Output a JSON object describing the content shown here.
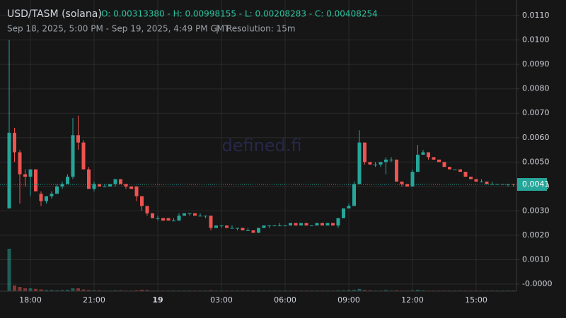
{
  "chart_data": {
    "type": "candlestick",
    "title": "USD/TASM (solana)",
    "summary": "O: 0.00313380 - H: 0.00998155 - L: 0.00208283 - C: 0.00408254",
    "subtitle": "Sep 18, 2025, 5:00 PM - Sep 19, 2025, 4:49 PM GMT",
    "separator": "|",
    "resolution": "Resolution: 15m",
    "watermark": "defined.fi",
    "up_color": "#26a69a",
    "down_color": "#ef5350",
    "grid": true,
    "ylim": [
      -0.00029,
      0.01164
    ],
    "yticks": [
      {
        "value": 0,
        "label": "-0.0000"
      },
      {
        "value": 0.001,
        "label": "0.0010"
      },
      {
        "value": 0.002,
        "label": "0.0020"
      },
      {
        "value": 0.003,
        "label": "0.0030"
      },
      {
        "value": 0.004,
        "label": "0.0040"
      },
      {
        "value": 0.005,
        "label": "0.0050"
      },
      {
        "value": 0.006,
        "label": "0.0060"
      },
      {
        "value": 0.007,
        "label": "0.0070"
      },
      {
        "value": 0.008,
        "label": "0.0080"
      },
      {
        "value": 0.009,
        "label": "0.0090"
      },
      {
        "value": 0.01,
        "label": "0.0100"
      },
      {
        "value": 0.011,
        "label": "0.0110"
      }
    ],
    "last_price": {
      "value": 0.00408254,
      "label": "0.0041"
    },
    "categories": [
      null,
      null,
      null,
      null,
      "18:00",
      null,
      null,
      null,
      null,
      null,
      null,
      null,
      null,
      null,
      null,
      null,
      "21:00",
      null,
      null,
      null,
      null,
      null,
      null,
      null,
      null,
      null,
      null,
      null,
      "19",
      null,
      null,
      null,
      null,
      null,
      null,
      null,
      null,
      null,
      null,
      null,
      "03:00",
      null,
      null,
      null,
      null,
      null,
      null,
      null,
      null,
      null,
      null,
      null,
      "06:00",
      null,
      null,
      null,
      null,
      null,
      null,
      null,
      null,
      null,
      null,
      null,
      "09:00",
      null,
      null,
      null,
      null,
      null,
      null,
      null,
      null,
      null,
      null,
      null,
      "12:00",
      null,
      null,
      null,
      null,
      null,
      null,
      null,
      null,
      null,
      null,
      null,
      "15:00",
      null,
      null,
      null,
      null,
      null,
      null,
      null
    ],
    "open": [
      0.0031,
      0.0062,
      0.0054,
      0.0045,
      0.0044,
      0.0047,
      0.0037,
      0.0034,
      0.0036,
      0.0037,
      0.004,
      0.0041,
      0.0044,
      0.0061,
      0.0058,
      0.0047,
      0.0039,
      0.0041,
      0.004,
      0.004,
      0.0041,
      0.0043,
      0.0041,
      0.004,
      0.004,
      0.0036,
      0.0032,
      0.0029,
      0.0027,
      0.0027,
      0.0027,
      0.0026,
      0.0026,
      0.0028,
      0.0029,
      0.0029,
      0.0028,
      0.0028,
      0.0028,
      0.0023,
      0.0024,
      0.0024,
      0.0023,
      0.0023,
      0.0023,
      0.0022,
      0.0022,
      0.0021,
      0.0023,
      0.0024,
      0.0024,
      0.0024,
      0.0024,
      0.0024,
      0.0025,
      0.0024,
      0.0025,
      0.0024,
      0.0024,
      0.0025,
      0.0024,
      0.0025,
      0.0024,
      0.0027,
      0.0031,
      0.0032,
      0.0041,
      0.0058,
      0.005,
      0.0049,
      0.0049,
      0.005,
      0.0051,
      0.0051,
      0.0042,
      0.0041,
      0.004,
      0.0046,
      0.0053,
      0.0054,
      0.0052,
      0.0051,
      0.005,
      0.0048,
      0.0047,
      0.0047,
      0.0046,
      0.0044,
      0.0043,
      0.0042,
      0.0042,
      0.0041,
      0.0041,
      0.0041,
      0.0041,
      0.0041
    ],
    "high": [
      0.01,
      0.0064,
      0.0055,
      0.0047,
      0.0047,
      0.0047,
      0.0038,
      0.0036,
      0.0038,
      0.0041,
      0.0042,
      0.0045,
      0.0068,
      0.0069,
      0.0059,
      0.0048,
      0.0042,
      0.0041,
      0.0041,
      0.0041,
      0.0043,
      0.0043,
      0.0041,
      0.004,
      0.004,
      0.0036,
      0.0032,
      0.0029,
      0.0028,
      0.0027,
      0.0027,
      0.0027,
      0.0029,
      0.0029,
      0.0029,
      0.0029,
      0.0029,
      0.0028,
      0.0028,
      0.0024,
      0.0024,
      0.0024,
      0.0024,
      0.0023,
      0.0023,
      0.0023,
      0.0022,
      0.0023,
      0.0024,
      0.0024,
      0.0024,
      0.0025,
      0.0024,
      0.0025,
      0.0025,
      0.0025,
      0.0025,
      0.0024,
      0.0025,
      0.0025,
      0.0025,
      0.0025,
      0.0027,
      0.0031,
      0.0033,
      0.0042,
      0.0063,
      0.0058,
      0.005,
      0.005,
      0.005,
      0.0052,
      0.0052,
      0.0051,
      0.0042,
      0.0041,
      0.0047,
      0.0057,
      0.0055,
      0.0054,
      0.0052,
      0.0051,
      0.005,
      0.0048,
      0.0047,
      0.0047,
      0.0046,
      0.0044,
      0.0043,
      0.0043,
      0.0042,
      0.0042,
      0.0041,
      0.0041,
      0.0041,
      0.0041
    ],
    "low": [
      0.0031,
      0.005,
      0.0033,
      0.004,
      0.0036,
      0.0038,
      0.0032,
      0.0033,
      0.0035,
      0.0037,
      0.0039,
      0.0041,
      0.0043,
      0.0055,
      0.0047,
      0.0039,
      0.0038,
      0.004,
      0.004,
      0.004,
      0.004,
      0.0041,
      0.0039,
      0.0039,
      0.0034,
      0.003,
      0.0028,
      0.0027,
      0.0026,
      0.0026,
      0.0026,
      0.0026,
      0.0026,
      0.0028,
      0.0028,
      0.0028,
      0.0028,
      0.0027,
      0.0022,
      0.0023,
      0.0023,
      0.0023,
      0.0023,
      0.0022,
      0.0022,
      0.0022,
      0.0021,
      0.0021,
      0.0023,
      0.0023,
      0.0024,
      0.0024,
      0.0024,
      0.0024,
      0.0024,
      0.0024,
      0.0024,
      0.0024,
      0.0024,
      0.0024,
      0.0024,
      0.0024,
      0.0023,
      0.0027,
      0.0031,
      0.0032,
      0.0041,
      0.0049,
      0.0049,
      0.0048,
      0.0048,
      0.0045,
      0.005,
      0.0042,
      0.004,
      0.004,
      0.004,
      0.0046,
      0.0053,
      0.0051,
      0.0051,
      0.005,
      0.0048,
      0.0047,
      0.0047,
      0.0046,
      0.0044,
      0.0043,
      0.0042,
      0.0042,
      0.0041,
      0.0041,
      0.0041,
      0.0041,
      0.004,
      0.004
    ],
    "close": [
      0.0062,
      0.0054,
      0.0045,
      0.0044,
      0.0047,
      0.0038,
      0.0034,
      0.0036,
      0.0037,
      0.004,
      0.0041,
      0.0044,
      0.0061,
      0.0058,
      0.0047,
      0.0039,
      0.0041,
      0.004,
      0.004,
      0.0041,
      0.0043,
      0.0041,
      0.004,
      0.0039,
      0.0036,
      0.0032,
      0.0029,
      0.0027,
      0.0027,
      0.0026,
      0.0026,
      0.0026,
      0.0028,
      0.0029,
      0.0029,
      0.0028,
      0.0028,
      0.0028,
      0.0023,
      0.0024,
      0.0024,
      0.0023,
      0.0023,
      0.0023,
      0.0022,
      0.0022,
      0.0021,
      0.0023,
      0.0024,
      0.0024,
      0.0024,
      0.0024,
      0.0024,
      0.0025,
      0.0024,
      0.0025,
      0.0024,
      0.0024,
      0.0025,
      0.0024,
      0.0025,
      0.0024,
      0.0027,
      0.0031,
      0.0032,
      0.0041,
      0.0058,
      0.005,
      0.0049,
      0.0049,
      0.005,
      0.0051,
      0.0051,
      0.0042,
      0.0041,
      0.004,
      0.0046,
      0.0053,
      0.0054,
      0.0052,
      0.0051,
      0.005,
      0.0048,
      0.0047,
      0.0047,
      0.0046,
      0.0044,
      0.0043,
      0.0042,
      0.0042,
      0.0041,
      0.0041,
      0.0041,
      0.0041,
      0.0041,
      0.00408254
    ],
    "volume": [
      15,
      2,
      1.5,
      1,
      1,
      0.8,
      0.6,
      0.4,
      0.4,
      0.3,
      0.4,
      0.5,
      1,
      1,
      0.6,
      0.4,
      0.3,
      0.3,
      0.2,
      0.2,
      0.3,
      0.3,
      0.2,
      0.2,
      0.3,
      0.5,
      0.4,
      0.2,
      0.2,
      0.2,
      0.2,
      0.2,
      0.2,
      0.2,
      0.2,
      0.2,
      0.2,
      0.2,
      0.3,
      0.2,
      0.2,
      0.2,
      0.2,
      0.2,
      0.2,
      0.2,
      0.2,
      0.2,
      0.2,
      0.2,
      0.2,
      0.2,
      0.2,
      0.2,
      0.2,
      0.2,
      0.2,
      0.2,
      0.2,
      0.2,
      0.2,
      0.2,
      0.3,
      0.3,
      0.4,
      0.5,
      0.8,
      0.4,
      0.3,
      0.2,
      0.2,
      0.4,
      0.2,
      0.3,
      0.2,
      0.2,
      0.3,
      0.5,
      0.3,
      0.2,
      0.2,
      0.2,
      0.2,
      0.2,
      0.2,
      0.2,
      0.2,
      0.2,
      0.2,
      0.2,
      0.2,
      0.2,
      0.2,
      0.2,
      0.2,
      0.2
    ]
  }
}
